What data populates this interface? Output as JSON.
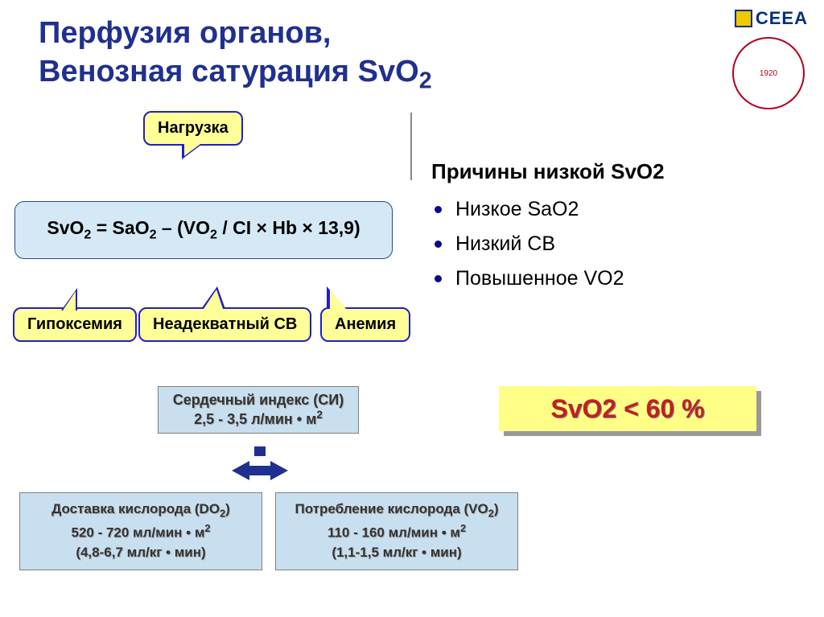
{
  "title_line1": "Перфузия органов,",
  "title_line2": "Венозная сатурация SvO",
  "title_sub": "2",
  "title_color": "#203090",
  "logo_text": "CEEA",
  "logo_color": "#003080",
  "logo_medal_year": "1920",
  "callouts": {
    "top": "Нагрузка",
    "left": "Гипоксемия",
    "mid": "Неадекватный СВ",
    "right": "Анемия"
  },
  "callout_bg": "#ffff99",
  "callout_border": "#2020c0",
  "formula_html": "SvO<sub>2</sub> = SaO<sub>2</sub> – (VO<sub>2</sub> / CI × Hb × 13,9)",
  "formula_bg": "#d5e8f5",
  "causes": {
    "heading": "Причины низкой SvO2",
    "items": [
      "Низкое SaO2",
      "Низкий СВ",
      "Повышенное VO2"
    ]
  },
  "svo2_warn": "SvO2 < 60 %",
  "svo2_warn_bg": "#ffff88",
  "svo2_warn_color": "#c02020",
  "ci_box": {
    "line1": "Сердечный индекс (СИ)",
    "line2_html": "2,5 - 3,5 л/мин • м<sup>2</sup>"
  },
  "do2_box": {
    "line1_html": "Доставка кислорода (DO<sub>2</sub>)",
    "line2_html": "520 - 720 мл/мин • м<sup>2</sup>",
    "line3": "(4,8-6,7 мл/кг • мин)"
  },
  "vo2_box": {
    "line1_html": "Потребление кислорода (VO<sub>2</sub>)",
    "line2_html": "110 - 160 мл/мин • м<sup>2</sup>",
    "line3": "(1,1-1,5 мл/кг • мин)"
  },
  "info_box_bg": "#c8dff0",
  "arrow_color": "#203090"
}
